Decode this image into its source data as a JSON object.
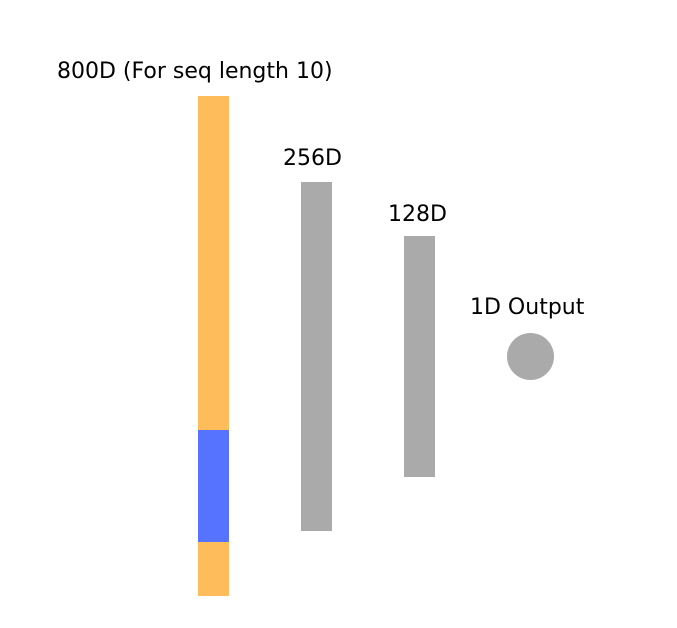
{
  "layers": {
    "input": {
      "label": "800D (For seq length 10)",
      "color": "#FFBC5B",
      "highlight_color": "#5673FF"
    },
    "hidden1": {
      "label": "256D",
      "color": "#AAAAAA"
    },
    "hidden2": {
      "label": "128D",
      "color": "#AAAAAA"
    },
    "output": {
      "label": "1D Output",
      "color": "#AAAAAA"
    }
  }
}
